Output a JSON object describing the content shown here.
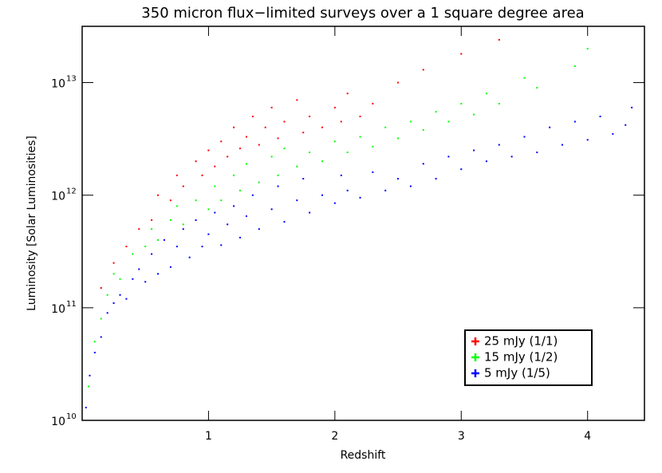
{
  "chart_data": {
    "type": "scatter",
    "title": "350 micron flux−limited surveys over a 1 square degree area",
    "x_label": "Redshift",
    "y_label": "Luminosity [Solar Luminosities]",
    "xlim": [
      0,
      4.45
    ],
    "xticks": [
      1,
      2,
      3,
      4
    ],
    "ylim": [
      10000000000.0,
      31600000000000.0
    ],
    "y_log": true,
    "yticks": [
      {
        "value": 10000000000.0,
        "label": "10",
        "exponent": "10"
      },
      {
        "value": 100000000000.0,
        "label": "10",
        "exponent": "11"
      },
      {
        "value": 1000000000000.0,
        "label": "10",
        "exponent": "12"
      },
      {
        "value": 10000000000000.0,
        "label": "10",
        "exponent": "13"
      }
    ],
    "legend": "lower right",
    "series": [
      {
        "name": "25 mJy (1/1)",
        "color": "#ff0000",
        "x": [
          0.15,
          0.25,
          0.35,
          0.45,
          0.55,
          0.6,
          0.7,
          0.75,
          0.8,
          0.9,
          0.95,
          1.0,
          1.05,
          1.1,
          1.15,
          1.2,
          1.25,
          1.3,
          1.35,
          1.4,
          1.45,
          1.5,
          1.55,
          1.6,
          1.7,
          1.75,
          1.8,
          1.9,
          2.0,
          2.05,
          2.1,
          2.2,
          2.3,
          2.5,
          2.7,
          3.0,
          3.3
        ],
        "values": [
          150000000000.0,
          250000000000.0,
          350000000000.0,
          500000000000.0,
          600000000000.0,
          1000000000000.0,
          900000000000.0,
          1500000000000.0,
          1200000000000.0,
          2000000000000.0,
          1500000000000.0,
          2500000000000.0,
          1800000000000.0,
          3000000000000.0,
          2200000000000.0,
          4000000000000.0,
          2600000000000.0,
          3300000000000.0,
          5000000000000.0,
          2800000000000.0,
          4000000000000.0,
          6000000000000.0,
          3200000000000.0,
          4500000000000.0,
          7000000000000.0,
          3600000000000.0,
          5000000000000.0,
          4000000000000.0,
          6000000000000.0,
          4500000000000.0,
          8000000000000.0,
          5000000000000.0,
          6500000000000.0,
          10000000000000.0,
          13000000000000.0,
          18000000000000.0,
          24000000000000.0
        ]
      },
      {
        "name": "15 mJy (1/2)",
        "color": "#00ff00",
        "x": [
          0.05,
          0.1,
          0.15,
          0.2,
          0.25,
          0.3,
          0.4,
          0.5,
          0.55,
          0.6,
          0.7,
          0.75,
          0.8,
          0.9,
          1.0,
          1.05,
          1.1,
          1.2,
          1.25,
          1.3,
          1.4,
          1.5,
          1.55,
          1.6,
          1.7,
          1.8,
          1.9,
          2.0,
          2.1,
          2.2,
          2.3,
          2.4,
          2.5,
          2.6,
          2.7,
          2.8,
          2.9,
          3.0,
          3.1,
          3.2,
          3.3,
          3.5,
          3.6,
          3.9,
          4.0
        ],
        "values": [
          20000000000.0,
          50000000000.0,
          80000000000.0,
          130000000000.0,
          200000000000.0,
          180000000000.0,
          300000000000.0,
          350000000000.0,
          500000000000.0,
          400000000000.0,
          600000000000.0,
          800000000000.0,
          550000000000.0,
          900000000000.0,
          750000000000.0,
          1200000000000.0,
          900000000000.0,
          1500000000000.0,
          1100000000000.0,
          1900000000000.0,
          1300000000000.0,
          2200000000000.0,
          1500000000000.0,
          2600000000000.0,
          1800000000000.0,
          2400000000000.0,
          2000000000000.0,
          3000000000000.0,
          2400000000000.0,
          3300000000000.0,
          2700000000000.0,
          4000000000000.0,
          3200000000000.0,
          4500000000000.0,
          3800000000000.0,
          5500000000000.0,
          4500000000000.0,
          6500000000000.0,
          5200000000000.0,
          8000000000000.0,
          6500000000000.0,
          11000000000000.0,
          9000000000000.0,
          14000000000000.0,
          20000000000000.0
        ]
      },
      {
        "name": "5 mJy (1/5)",
        "color": "#0000ff",
        "x": [
          0.03,
          0.06,
          0.1,
          0.15,
          0.2,
          0.25,
          0.3,
          0.35,
          0.4,
          0.45,
          0.5,
          0.55,
          0.6,
          0.65,
          0.7,
          0.75,
          0.8,
          0.85,
          0.9,
          0.95,
          1.0,
          1.05,
          1.1,
          1.15,
          1.2,
          1.25,
          1.3,
          1.35,
          1.4,
          1.5,
          1.55,
          1.6,
          1.7,
          1.75,
          1.8,
          1.9,
          2.0,
          2.05,
          2.1,
          2.2,
          2.3,
          2.4,
          2.5,
          2.6,
          2.7,
          2.8,
          2.9,
          3.0,
          3.1,
          3.2,
          3.3,
          3.4,
          3.5,
          3.6,
          3.7,
          3.8,
          3.9,
          4.0,
          4.1,
          4.2,
          4.3,
          4.35
        ],
        "values": [
          13000000000.0,
          25000000000.0,
          40000000000.0,
          55000000000.0,
          90000000000.0,
          110000000000.0,
          130000000000.0,
          120000000000.0,
          180000000000.0,
          220000000000.0,
          170000000000.0,
          300000000000.0,
          200000000000.0,
          400000000000.0,
          230000000000.0,
          350000000000.0,
          500000000000.0,
          280000000000.0,
          600000000000.0,
          350000000000.0,
          450000000000.0,
          700000000000.0,
          360000000000.0,
          550000000000.0,
          800000000000.0,
          420000000000.0,
          650000000000.0,
          1000000000000.0,
          500000000000.0,
          750000000000.0,
          1200000000000.0,
          580000000000.0,
          900000000000.0,
          1400000000000.0,
          700000000000.0,
          1000000000000.0,
          850000000000.0,
          1500000000000.0,
          1100000000000.0,
          950000000000.0,
          1600000000000.0,
          1100000000000.0,
          1400000000000.0,
          1200000000000.0,
          1900000000000.0,
          1400000000000.0,
          2200000000000.0,
          1700000000000.0,
          2500000000000.0,
          2000000000000.0,
          2800000000000.0,
          2200000000000.0,
          3300000000000.0,
          2400000000000.0,
          4000000000000.0,
          2800000000000.0,
          4500000000000.0,
          3100000000000.0,
          5000000000000.0,
          3500000000000.0,
          4200000000000.0,
          6000000000000.0
        ]
      }
    ]
  }
}
